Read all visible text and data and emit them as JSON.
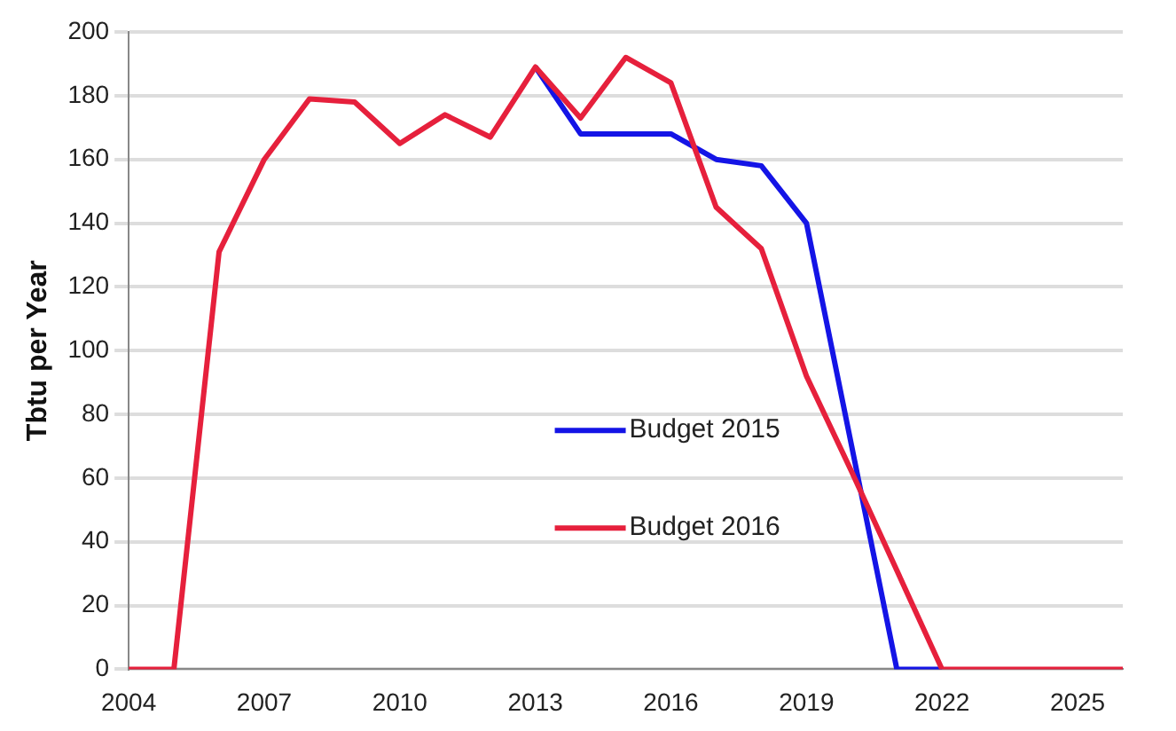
{
  "chart_data": {
    "type": "line",
    "ylabel": "Tbtu per Year",
    "categories": [
      "2004",
      null,
      null,
      "2007",
      null,
      null,
      "2010",
      null,
      null,
      "2013",
      null,
      null,
      "2016",
      null,
      null,
      "2019",
      null,
      null,
      "2022",
      null,
      null,
      "2025",
      null
    ],
    "series": [
      {
        "name": "Budget 2015",
        "color": "#1414e6",
        "values": [
          null,
          null,
          null,
          null,
          null,
          null,
          null,
          null,
          null,
          189,
          168,
          168,
          168,
          160,
          158,
          140,
          70,
          0,
          0,
          null,
          null,
          null,
          null
        ]
      },
      {
        "name": "Budget 2016",
        "color": "#e6203c",
        "values": [
          0,
          0,
          131,
          160,
          179,
          178,
          165,
          174,
          167,
          189,
          173,
          192,
          184,
          145,
          132,
          92,
          62,
          31,
          0,
          0,
          0,
          0,
          0
        ]
      }
    ],
    "ylim": [
      0,
      200
    ],
    "yticks": [
      0,
      20,
      40,
      60,
      80,
      100,
      120,
      140,
      160,
      180,
      200
    ],
    "grid": "y",
    "legend": "center",
    "line_style": "solid",
    "marker": "none"
  }
}
